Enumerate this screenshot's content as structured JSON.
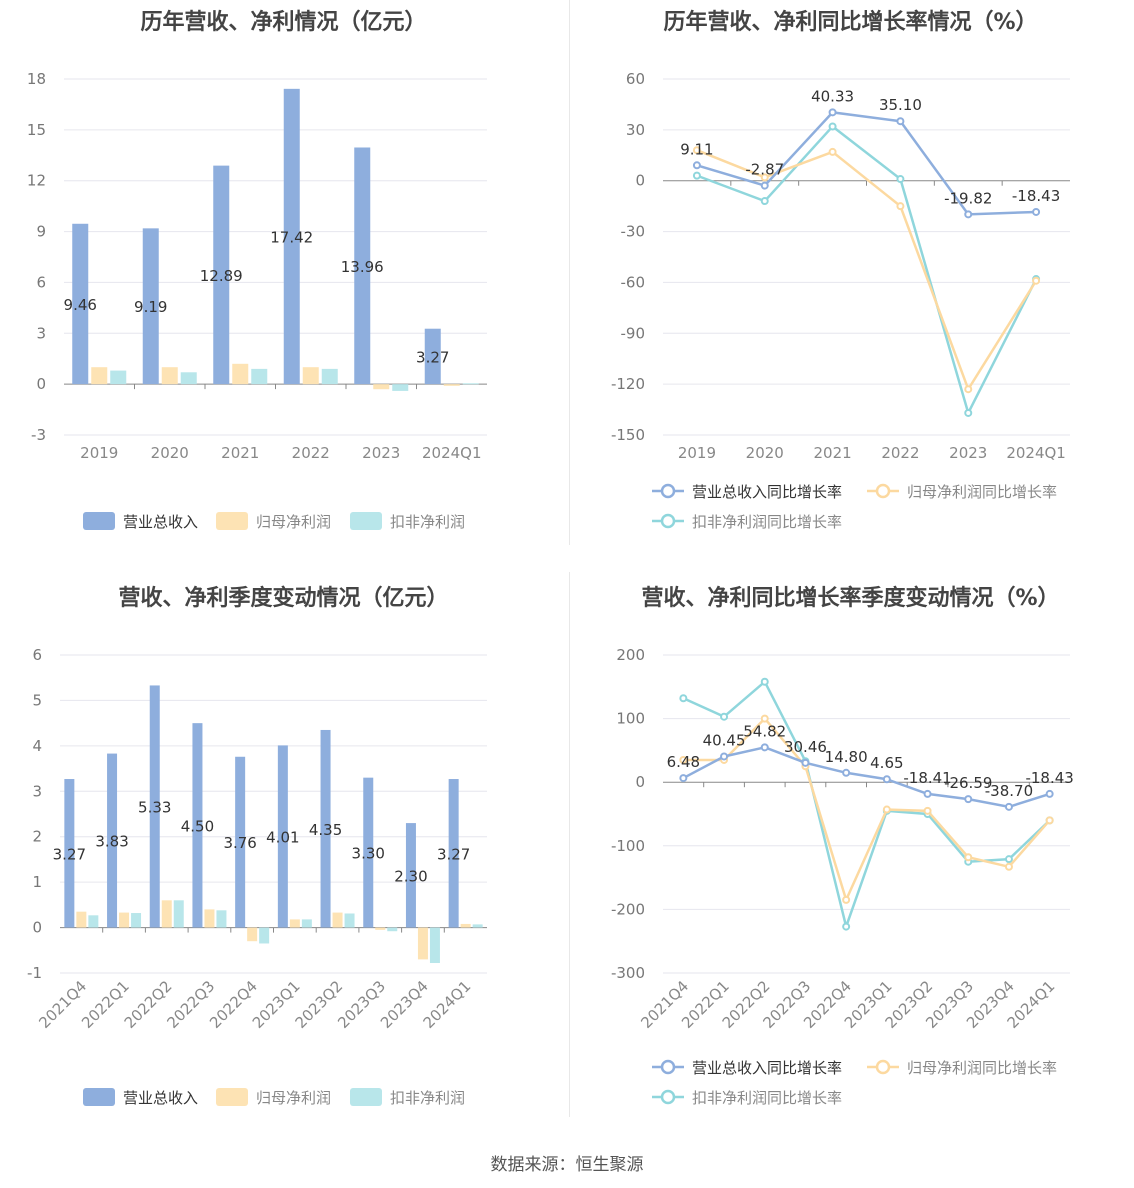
{
  "source": "数据来源：恒生聚源",
  "colors": {
    "revenue": "#8eaedd",
    "parent_profit": "#fde3b4",
    "deducted_profit": "#b8e6ea",
    "revenue_line": "#8eaedd",
    "parent_line": "#fcd9a0",
    "deducted_line": "#8fd6dc"
  },
  "chart_data": [
    {
      "id": "annual_amount",
      "type": "bar",
      "title": "历年营收、净利情况（亿元）",
      "categories": [
        "2019",
        "2020",
        "2021",
        "2022",
        "2023",
        "2024Q1"
      ],
      "ylim": [
        -3,
        18
      ],
      "yticks": [
        -3,
        0,
        3,
        6,
        9,
        12,
        15,
        18
      ],
      "legend": "bottom",
      "series": [
        {
          "name": "营业总收入",
          "color": "#8eaedd",
          "values": [
            9.46,
            9.19,
            12.89,
            17.42,
            13.96,
            3.27
          ],
          "labels": [
            "9.46",
            "9.19",
            "12.89",
            "17.42",
            "13.96",
            "3.27"
          ]
        },
        {
          "name": "归母净利润",
          "color": "#fde3b4",
          "values": [
            1.0,
            1.0,
            1.2,
            1.0,
            -0.3,
            -0.1
          ]
        },
        {
          "name": "扣非净利润",
          "color": "#b8e6ea",
          "values": [
            0.8,
            0.7,
            0.9,
            0.9,
            -0.4,
            0.05
          ]
        }
      ]
    },
    {
      "id": "annual_growth",
      "type": "line",
      "title": "历年营收、净利同比增长率情况（%）",
      "categories": [
        "2019",
        "2020",
        "2021",
        "2022",
        "2023",
        "2024Q1"
      ],
      "ylim": [
        -150,
        60
      ],
      "yticks": [
        -150,
        -120,
        -90,
        -60,
        -30,
        0,
        30,
        60
      ],
      "legend": "bottom",
      "series": [
        {
          "name": "营业总收入同比增长率",
          "color": "#8eaedd",
          "values": [
            9.11,
            -2.87,
            40.33,
            35.1,
            -19.82,
            -18.43
          ],
          "labels": [
            "9.11",
            "-2.87",
            "40.33",
            "35.10",
            "-19.82",
            "-18.43"
          ]
        },
        {
          "name": "归母净利润同比增长率",
          "color": "#fcd9a0",
          "values": [
            18,
            2,
            17,
            -15,
            -123,
            -59
          ]
        },
        {
          "name": "扣非净利润同比增长率",
          "color": "#8fd6dc",
          "values": [
            3,
            -12,
            32,
            1,
            -137,
            -58
          ]
        }
      ]
    },
    {
      "id": "quarterly_amount",
      "type": "bar",
      "title": "营收、净利季度变动情况（亿元）",
      "categories": [
        "2021Q4",
        "2022Q1",
        "2022Q2",
        "2022Q3",
        "2022Q4",
        "2023Q1",
        "2023Q2",
        "2023Q3",
        "2023Q4",
        "2024Q1"
      ],
      "ylim": [
        -1,
        6
      ],
      "yticks": [
        -1,
        0,
        1,
        2,
        3,
        4,
        5,
        6
      ],
      "legend": "bottom",
      "series": [
        {
          "name": "营业总收入",
          "color": "#8eaedd",
          "values": [
            3.27,
            3.83,
            5.33,
            4.5,
            3.76,
            4.01,
            4.35,
            3.3,
            2.3,
            3.27
          ],
          "labels": [
            "3.27",
            "3.83",
            "5.33",
            "4.50",
            "3.76",
            "4.01",
            "4.35",
            "3.30",
            "2.30",
            "3.27"
          ]
        },
        {
          "name": "归母净利润",
          "color": "#fde3b4",
          "values": [
            0.35,
            0.33,
            0.6,
            0.4,
            -0.3,
            0.18,
            0.33,
            -0.05,
            -0.7,
            0.08
          ]
        },
        {
          "name": "扣非净利润",
          "color": "#b8e6ea",
          "values": [
            0.27,
            0.32,
            0.6,
            0.38,
            -0.35,
            0.18,
            0.31,
            -0.08,
            -0.78,
            0.07
          ]
        }
      ]
    },
    {
      "id": "quarterly_growth",
      "type": "line",
      "title": "营收、净利同比增长率季度变动情况（%）",
      "categories": [
        "2021Q4",
        "2022Q1",
        "2022Q2",
        "2022Q3",
        "2022Q4",
        "2023Q1",
        "2023Q2",
        "2023Q3",
        "2023Q4",
        "2024Q1"
      ],
      "ylim": [
        -300,
        200
      ],
      "yticks": [
        -300,
        -200,
        -100,
        0,
        100,
        200
      ],
      "legend": "bottom",
      "series": [
        {
          "name": "营业总收入同比增长率",
          "color": "#8eaedd",
          "values": [
            6.48,
            40.45,
            54.82,
            30.46,
            14.8,
            4.65,
            -18.41,
            -26.59,
            -38.7,
            -18.43
          ],
          "labels": [
            "6.48",
            "40.45",
            "54.82",
            "30.46",
            "14.80",
            "4.65",
            "-18.41",
            "-26.59",
            "-38.70",
            "-18.43"
          ]
        },
        {
          "name": "归母净利润同比增长率",
          "color": "#fcd9a0",
          "values": [
            35,
            35,
            100,
            25,
            -185,
            -43,
            -45,
            -118,
            -133,
            -60
          ]
        },
        {
          "name": "扣非净利润同比增长率",
          "color": "#8fd6dc",
          "values": [
            132,
            103,
            158,
            33,
            -227,
            -45,
            -50,
            -125,
            -121,
            -60
          ]
        }
      ]
    }
  ]
}
